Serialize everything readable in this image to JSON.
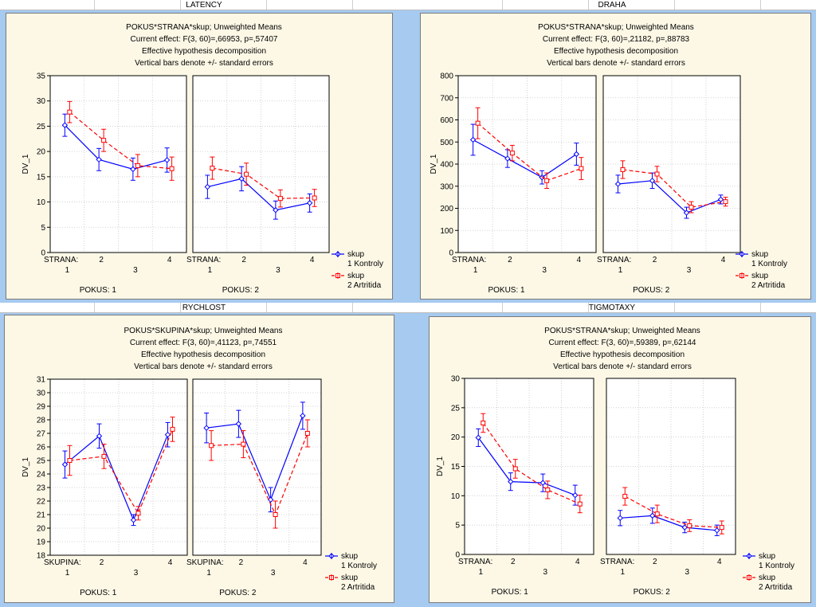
{
  "colors": {
    "background": "#a6caf0",
    "panel": "#fdf8e6",
    "kontroly": "#0000ff",
    "artritida": "#ff0000",
    "grid": "#c8c8c8"
  },
  "legend": {
    "title": "skup",
    "series1": "1 Kontroly",
    "series2": "2 Artritida"
  },
  "pokus_labels": [
    "POKUS: 1",
    "POKUS: 2"
  ],
  "x_positions": {
    "first": "1",
    "second": "2",
    "third": "3",
    "fourth": "4"
  },
  "chart_data": [
    {
      "window_title": "LATENCY",
      "type": "line",
      "title_lines": [
        "POKUS*STRANA*skup; Unweighted Means",
        "Current effect: F(3, 60)=,66953, p=,57407",
        "Effective hypothesis decomposition",
        "Vertical bars denote +/- standard errors"
      ],
      "ylabel": "DV_1",
      "xfactor": "STRANA:",
      "ylim": [
        0,
        35
      ],
      "yticks": [
        "0",
        "5",
        "10",
        "15",
        "20",
        "25",
        "30",
        "35"
      ],
      "categories": [
        "1",
        "2",
        "3",
        "4"
      ],
      "series": [
        {
          "name": "1 Kontroly",
          "pokus1": [
            25.2,
            18.4,
            16.5,
            18.3
          ],
          "pokus1_se": [
            2.2,
            2.2,
            2.2,
            2.4
          ],
          "pokus2": [
            13.0,
            14.6,
            8.4,
            9.8
          ],
          "pokus2_se": [
            2.3,
            2.4,
            1.8,
            1.8
          ]
        },
        {
          "name": "2 Artritida",
          "pokus1": [
            27.8,
            22.2,
            17.2,
            16.6
          ],
          "pokus1_se": [
            2.1,
            2.2,
            2.2,
            2.3
          ],
          "pokus2": [
            16.7,
            15.5,
            10.7,
            10.8
          ],
          "pokus2_se": [
            2.2,
            2.2,
            1.7,
            1.7
          ]
        }
      ]
    },
    {
      "window_title": "DRAHA",
      "type": "line",
      "title_lines": [
        "POKUS*STRANA*skup; Unweighted Means",
        "Current effect: F(3, 60)=,21182, p=,88783",
        "Effective hypothesis decomposition",
        "Vertical bars denote +/- standard errors"
      ],
      "ylabel": "DV_1",
      "xfactor": "STRANA:",
      "ylim": [
        0,
        800
      ],
      "yticks": [
        "0",
        "100",
        "200",
        "300",
        "400",
        "500",
        "600",
        "700",
        "800"
      ],
      "categories": [
        "1",
        "2",
        "3",
        "4"
      ],
      "series": [
        {
          "name": "1 Kontroly",
          "pokus1": [
            510,
            425,
            340,
            445
          ],
          "pokus1_se": [
            70,
            40,
            30,
            50
          ],
          "pokus2": [
            310,
            325,
            180,
            240
          ],
          "pokus2_se": [
            40,
            35,
            25,
            20
          ]
        },
        {
          "name": "2 Artritida",
          "pokus1": [
            585,
            450,
            325,
            380
          ],
          "pokus1_se": [
            70,
            35,
            35,
            50
          ],
          "pokus2": [
            375,
            355,
            205,
            230
          ],
          "pokus2_se": [
            40,
            35,
            25,
            20
          ]
        }
      ]
    },
    {
      "window_title": "RYCHLOST",
      "type": "line",
      "title_lines": [
        "POKUS*SKUPINA*skup; Unweighted Means",
        "Current effect: F(3, 60)=,41123, p=,74551",
        "Effective hypothesis decomposition",
        "Vertical bars denote +/- standard errors"
      ],
      "ylabel": "DV_1",
      "xfactor": "SKUPINA:",
      "ylim": [
        18,
        31
      ],
      "yticks": [
        "18",
        "19",
        "20",
        "21",
        "22",
        "23",
        "24",
        "25",
        "26",
        "27",
        "28",
        "29",
        "30",
        "31"
      ],
      "categories": [
        "1",
        "2",
        "3",
        "4"
      ],
      "series": [
        {
          "name": "1 Kontroly",
          "pokus1": [
            24.7,
            26.8,
            20.6,
            26.9
          ],
          "pokus1_se": [
            1.0,
            0.9,
            0.4,
            0.9
          ],
          "pokus2": [
            27.4,
            27.7,
            22.1,
            28.3
          ],
          "pokus2_se": [
            1.1,
            1.0,
            0.9,
            1.0
          ]
        },
        {
          "name": "2 Artritida",
          "pokus1": [
            25.0,
            25.3,
            21.1,
            27.3
          ],
          "pokus1_se": [
            1.1,
            0.9,
            0.5,
            0.9
          ],
          "pokus2": [
            26.1,
            26.2,
            21.0,
            27.0
          ],
          "pokus2_se": [
            1.1,
            1.0,
            1.0,
            1.0
          ]
        }
      ]
    },
    {
      "window_title": "TIGMOTAXY",
      "type": "line",
      "title_lines": [
        "POKUS*STRANA*skup; Unweighted Means",
        "Current effect: F(3, 60)=,59389, p=,62144",
        "Effective hypothesis decomposition",
        "Vertical bars denote +/- standard errors"
      ],
      "ylabel": "DV_1",
      "xfactor": "STRANA:",
      "ylim": [
        0,
        30
      ],
      "yticks": [
        "0",
        "5",
        "10",
        "15",
        "20",
        "25",
        "30"
      ],
      "categories": [
        "1",
        "2",
        "3",
        "4"
      ],
      "series": [
        {
          "name": "1 Kontroly",
          "pokus1": [
            19.9,
            12.4,
            12.2,
            10.1
          ],
          "pokus1_se": [
            1.5,
            1.5,
            1.5,
            1.7
          ],
          "pokus2": [
            6.2,
            6.6,
            4.6,
            4.1
          ],
          "pokus2_se": [
            1.3,
            1.3,
            0.9,
            0.9
          ]
        },
        {
          "name": "2 Artritida",
          "pokus1": [
            22.4,
            14.6,
            11.0,
            8.6
          ],
          "pokus1_se": [
            1.6,
            1.6,
            1.5,
            1.5
          ],
          "pokus2": [
            9.9,
            6.9,
            4.9,
            4.6
          ],
          "pokus2_se": [
            1.5,
            1.5,
            1.0,
            1.1
          ]
        }
      ]
    }
  ]
}
